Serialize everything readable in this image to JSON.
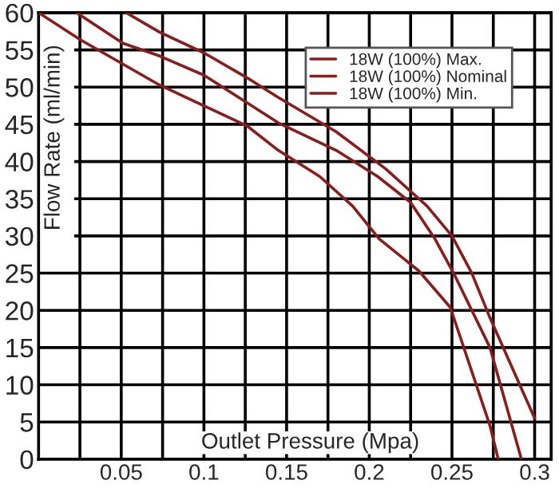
{
  "chart_data": {
    "type": "line",
    "xlabel": "Outlet Pressure (Mpa)",
    "ylabel": "Flow Rate (ml/min)",
    "xlim": [
      0,
      0.31
    ],
    "ylim": [
      0,
      60
    ],
    "xticks": [
      {
        "value": 0.025,
        "label": null
      },
      0.05,
      {
        "value": 0.075,
        "label": null
      },
      0.1,
      {
        "value": 0.125,
        "label": null
      },
      0.15,
      {
        "value": 0.175,
        "label": null
      },
      0.2,
      {
        "value": 0.225,
        "label": null
      },
      0.25,
      {
        "value": 0.275,
        "label": null
      },
      0.3
    ],
    "yticks": [
      0,
      5,
      10,
      15,
      20,
      25,
      30,
      35,
      40,
      45,
      50,
      55,
      60
    ],
    "grid": true,
    "legend": "top right",
    "marker": "none",
    "line_style": "solid",
    "series": [
      {
        "name": "18W (100%) Max.",
        "color": "#8b1c1c",
        "x": [
          0.053,
          0.073,
          0.1,
          0.128,
          0.145,
          0.18,
          0.21,
          0.235,
          0.25,
          0.262,
          0.273,
          0.3
        ],
        "values": [
          60,
          57.4,
          54.6,
          51.0,
          48.6,
          44,
          39,
          34,
          30,
          25,
          19,
          5.5
        ]
      },
      {
        "name": "18W (100%) Nominal",
        "color": "#8b1c1c",
        "x": [
          0.023,
          0.051,
          0.073,
          0.1,
          0.145,
          0.18,
          0.205,
          0.225,
          0.24,
          0.251,
          0.273,
          0.292
        ],
        "values": [
          60,
          55.9,
          54.2,
          51.6,
          45.2,
          41.5,
          38,
          34.5,
          29.5,
          25,
          15,
          0
        ]
      },
      {
        "name": "18W (100%) Min.",
        "color": "#8b1c1c",
        "x": [
          0,
          0.025,
          0.073,
          0.126,
          0.145,
          0.17,
          0.19,
          0.206,
          0.23,
          0.249,
          0.273,
          0.278
        ],
        "values": [
          60,
          56.4,
          50.3,
          44.8,
          41.5,
          38,
          34,
          29.6,
          25.3,
          20.4,
          4.5,
          0
        ]
      }
    ]
  }
}
